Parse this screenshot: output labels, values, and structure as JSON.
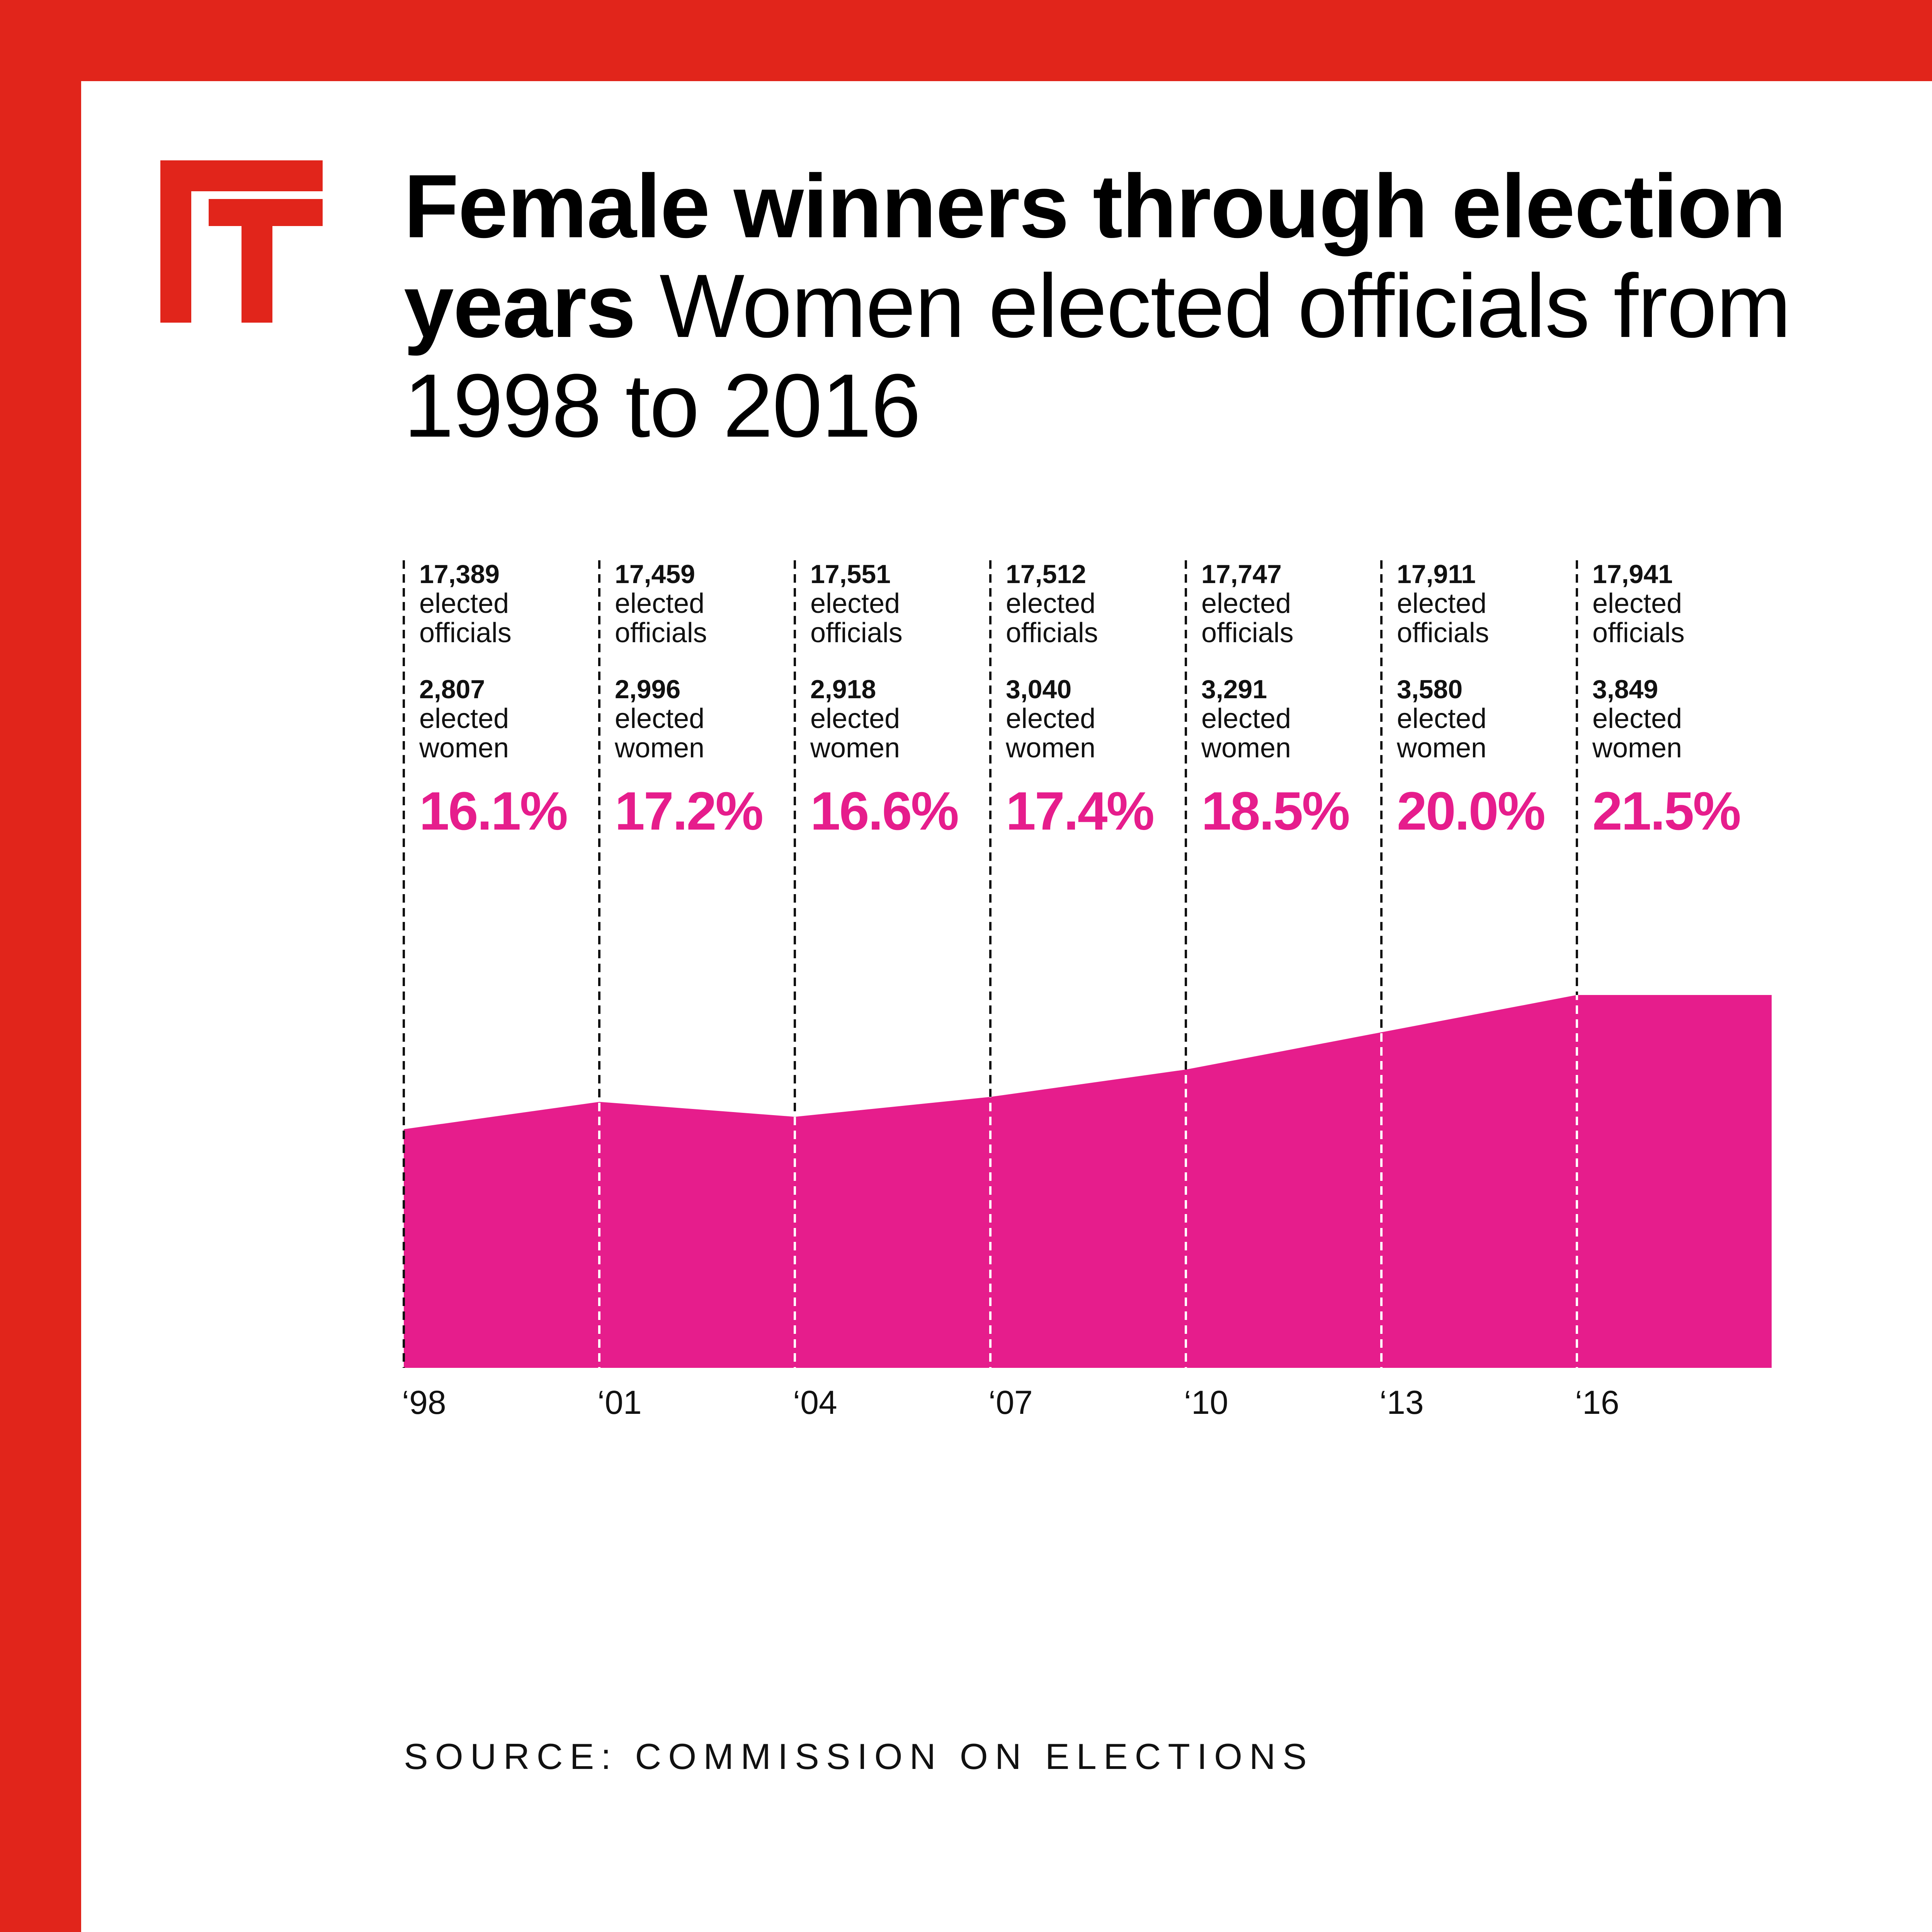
{
  "colors": {
    "frame": "#e1251b",
    "area": "#e61d8c",
    "text": "#111111"
  },
  "logo": {
    "icon": "ft-logo-icon"
  },
  "title": {
    "bold": "Female winners through election years",
    "light": "Women elected officials from 1998 to 2016"
  },
  "source": "SOURCE: COMMISSION ON ELECTIONS",
  "chart_data": {
    "type": "area",
    "x": [
      "‘98",
      "‘01",
      "‘04",
      "‘07",
      "‘10",
      "‘13",
      "‘16"
    ],
    "officials": [
      "17,389",
      "17,459",
      "17,551",
      "17,512",
      "17,747",
      "17,911",
      "17,941"
    ],
    "officials_label": "elected officials",
    "women": [
      "2,807",
      "2,996",
      "2,918",
      "3,040",
      "3,291",
      "3,580",
      "3,849"
    ],
    "women_label": "elected women",
    "percent_labels": [
      "16.1%",
      "17.2%",
      "16.6%",
      "17.4%",
      "18.5%",
      "20.0%",
      "21.5%"
    ],
    "values": [
      16.1,
      17.2,
      16.6,
      17.4,
      18.5,
      20.0,
      21.5
    ]
  }
}
